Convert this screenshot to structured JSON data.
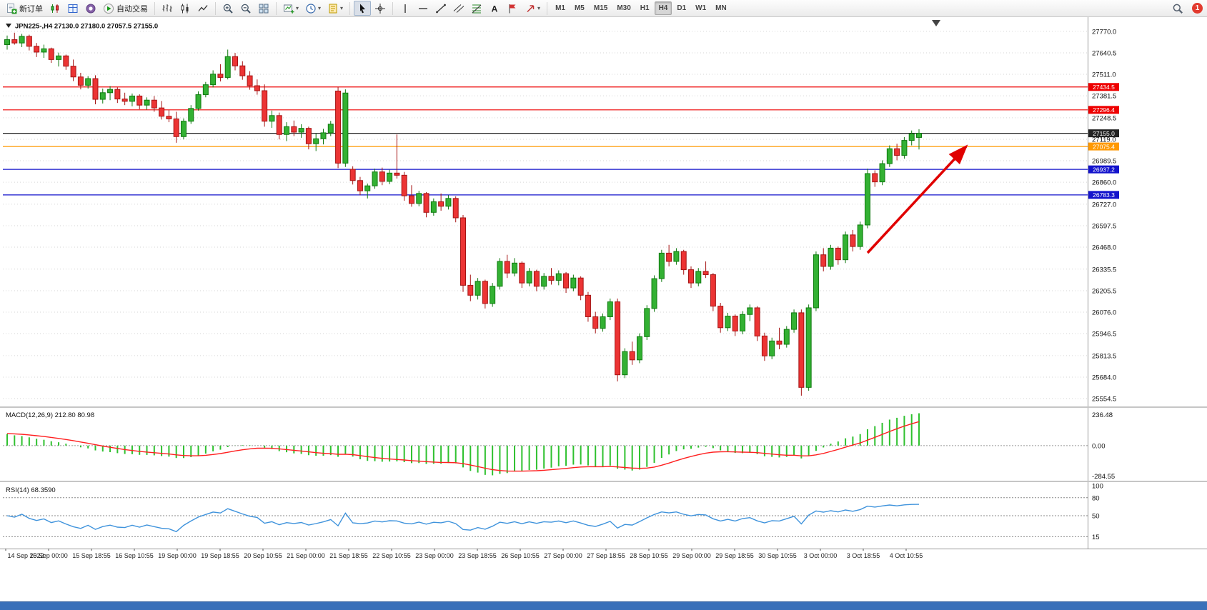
{
  "toolbar": {
    "groups": [
      {
        "items": [
          {
            "name": "new-order-button",
            "icon": "doc-plus",
            "label": "新订单"
          },
          {
            "name": "market-watch-button",
            "icon": "mini-candles"
          },
          {
            "name": "data-window-button",
            "icon": "blue-grid"
          },
          {
            "name": "navigator-button",
            "icon": "purple-circle"
          },
          {
            "name": "autotrading-button",
            "icon": "play",
            "label": "自动交易"
          }
        ]
      },
      {
        "items": [
          {
            "name": "bars-chart-button",
            "icon": "bars"
          },
          {
            "name": "candles-chart-button",
            "icon": "candles"
          },
          {
            "name": "line-chart-button",
            "icon": "line"
          }
        ]
      },
      {
        "items": [
          {
            "name": "zoom-in-button",
            "icon": "zoom-in"
          },
          {
            "name": "zoom-out-button",
            "icon": "zoom-out"
          },
          {
            "name": "tile-windows-button",
            "icon": "tile"
          }
        ]
      },
      {
        "items": [
          {
            "name": "new-chart-button",
            "icon": "new-chart",
            "caret": true
          },
          {
            "name": "periods-button",
            "icon": "clock",
            "caret": true
          },
          {
            "name": "templates-button",
            "icon": "template",
            "caret": true
          }
        ]
      },
      {
        "items": [
          {
            "name": "cursor-button",
            "icon": "cursor",
            "active": true
          },
          {
            "name": "crosshair-button",
            "icon": "crosshair"
          }
        ]
      },
      {
        "items": [
          {
            "name": "vertical-line-button",
            "icon": "vline"
          },
          {
            "name": "horizontal-line-button",
            "icon": "hline"
          },
          {
            "name": "trendline-button",
            "icon": "trendline"
          },
          {
            "name": "channel-button",
            "icon": "channel"
          },
          {
            "name": "fibonacci-button",
            "icon": "fibo"
          },
          {
            "name": "text-button",
            "icon": "text"
          },
          {
            "name": "label-button",
            "icon": "flag"
          },
          {
            "name": "shapes-button",
            "icon": "arrows",
            "caret": true
          }
        ]
      }
    ],
    "timeframes": [
      "M1",
      "M5",
      "M15",
      "M30",
      "H1",
      "H4",
      "D1",
      "W1",
      "MN"
    ],
    "active_timeframe": "H4",
    "notification_count": "1"
  },
  "chart_data": {
    "type": "candlestick",
    "symbol": "JPN225-,H4",
    "ohlc_readout": "27130.0 27180.0 27057.5 27155.0",
    "ylim": [
      25520,
      27830
    ],
    "price_ticks": [
      27770.0,
      27640.5,
      27511.0,
      27381.5,
      27248.5,
      27119.0,
      26989.5,
      26860.0,
      26727.0,
      26597.5,
      26468.0,
      26335.5,
      26205.5,
      26076.0,
      25946.5,
      25813.5,
      25684.0,
      25554.5
    ],
    "hlines": [
      {
        "value": 27434.5,
        "label": "27434.5",
        "color": "#ee0000"
      },
      {
        "value": 27296.4,
        "label": "27296.4",
        "color": "#ee0000"
      },
      {
        "value": 27155.0,
        "label": "27155.0",
        "color": "#222222"
      },
      {
        "value": 27075.4,
        "label": "27075.4",
        "color": "#ff9900"
      },
      {
        "value": 26937.2,
        "label": "26937.2",
        "color": "#1313cc"
      },
      {
        "value": 26783.3,
        "label": "26783.3",
        "color": "#1313cc"
      }
    ],
    "candles": [
      [
        27690,
        27745,
        27660,
        27720
      ],
      [
        27720,
        27762,
        27690,
        27700
      ],
      [
        27700,
        27755,
        27675,
        27740
      ],
      [
        27740,
        27750,
        27655,
        27680
      ],
      [
        27680,
        27700,
        27615,
        27645
      ],
      [
        27645,
        27690,
        27610,
        27665
      ],
      [
        27665,
        27672,
        27580,
        27600
      ],
      [
        27600,
        27642,
        27558,
        27622
      ],
      [
        27622,
        27630,
        27538,
        27560
      ],
      [
        27560,
        27600,
        27470,
        27495
      ],
      [
        27495,
        27520,
        27420,
        27445
      ],
      [
        27445,
        27500,
        27425,
        27485
      ],
      [
        27485,
        27505,
        27330,
        27360
      ],
      [
        27360,
        27425,
        27335,
        27400
      ],
      [
        27400,
        27440,
        27355,
        27420
      ],
      [
        27420,
        27432,
        27338,
        27362
      ],
      [
        27362,
        27400,
        27325,
        27348
      ],
      [
        27348,
        27395,
        27318,
        27380
      ],
      [
        27380,
        27390,
        27300,
        27325
      ],
      [
        27325,
        27372,
        27298,
        27355
      ],
      [
        27355,
        27380,
        27285,
        27308
      ],
      [
        27308,
        27350,
        27238,
        27258
      ],
      [
        27258,
        27295,
        27222,
        27242
      ],
      [
        27242,
        27285,
        27098,
        27135
      ],
      [
        27135,
        27245,
        27118,
        27228
      ],
      [
        27228,
        27325,
        27212,
        27305
      ],
      [
        27305,
        27408,
        27292,
        27388
      ],
      [
        27388,
        27465,
        27372,
        27448
      ],
      [
        27448,
        27535,
        27432,
        27512
      ],
      [
        27512,
        27572,
        27468,
        27492
      ],
      [
        27492,
        27660,
        27480,
        27618
      ],
      [
        27618,
        27640,
        27535,
        27562
      ],
      [
        27562,
        27590,
        27478,
        27502
      ],
      [
        27502,
        27530,
        27418,
        27442
      ],
      [
        27442,
        27480,
        27388,
        27412
      ],
      [
        27412,
        27450,
        27195,
        27228
      ],
      [
        27228,
        27292,
        27188,
        27262
      ],
      [
        27262,
        27280,
        27118,
        27148
      ],
      [
        27148,
        27222,
        27108,
        27195
      ],
      [
        27195,
        27232,
        27138,
        27162
      ],
      [
        27162,
        27210,
        27128,
        27185
      ],
      [
        27185,
        27195,
        27058,
        27092
      ],
      [
        27092,
        27152,
        27048,
        27122
      ],
      [
        27122,
        27182,
        27088,
        27158
      ],
      [
        27158,
        27230,
        27138,
        27210
      ],
      [
        27410,
        27435,
        26945,
        26975
      ],
      [
        26975,
        27420,
        26952,
        27398
      ],
      [
        26938,
        26956,
        26846,
        26870
      ],
      [
        26870,
        26892,
        26782,
        26808
      ],
      [
        26808,
        26852,
        26762,
        26838
      ],
      [
        26838,
        26942,
        26820,
        26922
      ],
      [
        26922,
        26948,
        26842,
        26865
      ],
      [
        26865,
        26935,
        26848,
        26915
      ],
      [
        26915,
        27148,
        26882,
        26902
      ],
      [
        26902,
        26922,
        26748,
        26778
      ],
      [
        26778,
        26842,
        26712,
        26732
      ],
      [
        26732,
        26808,
        26715,
        26792
      ],
      [
        26792,
        26800,
        26648,
        26678
      ],
      [
        26678,
        26762,
        26658,
        26742
      ],
      [
        26742,
        26792,
        26688,
        26715
      ],
      [
        26715,
        26782,
        26695,
        26762
      ],
      [
        26762,
        26775,
        26618,
        26645
      ],
      [
        26645,
        26662,
        26198,
        26238
      ],
      [
        26238,
        26302,
        26142,
        26178
      ],
      [
        26178,
        26282,
        26152,
        26262
      ],
      [
        26262,
        26272,
        26098,
        26128
      ],
      [
        26128,
        26252,
        26108,
        26232
      ],
      [
        26232,
        26402,
        26212,
        26382
      ],
      [
        26382,
        26422,
        26282,
        26312
      ],
      [
        26312,
        26402,
        26292,
        26372
      ],
      [
        26372,
        26382,
        26222,
        26252
      ],
      [
        26252,
        26342,
        26232,
        26322
      ],
      [
        26322,
        26332,
        26202,
        26232
      ],
      [
        26232,
        26312,
        26212,
        26292
      ],
      [
        26292,
        26342,
        26242,
        26268
      ],
      [
        26268,
        26328,
        26238,
        26308
      ],
      [
        26308,
        26318,
        26192,
        26222
      ],
      [
        26222,
        26302,
        26202,
        26282
      ],
      [
        26282,
        26292,
        26148,
        26178
      ],
      [
        26178,
        26198,
        26018,
        26048
      ],
      [
        26048,
        26078,
        25948,
        25978
      ],
      [
        25978,
        26068,
        25958,
        26048
      ],
      [
        26048,
        26158,
        26028,
        26138
      ],
      [
        26138,
        26158,
        25658,
        25698
      ],
      [
        25698,
        25858,
        25678,
        25838
      ],
      [
        25838,
        25898,
        25758,
        25788
      ],
      [
        25788,
        25948,
        25768,
        25928
      ],
      [
        25928,
        26118,
        25908,
        26098
      ],
      [
        26098,
        26298,
        26078,
        26278
      ],
      [
        26278,
        26452,
        26258,
        26432
      ],
      [
        26432,
        26482,
        26352,
        26382
      ],
      [
        26382,
        26462,
        26362,
        26442
      ],
      [
        26442,
        26452,
        26302,
        26332
      ],
      [
        26332,
        26352,
        26222,
        26252
      ],
      [
        26252,
        26342,
        26232,
        26322
      ],
      [
        26322,
        26382,
        26282,
        26302
      ],
      [
        26302,
        26312,
        26082,
        26112
      ],
      [
        26112,
        26132,
        25952,
        25982
      ],
      [
        25982,
        26072,
        25962,
        26052
      ],
      [
        26052,
        26062,
        25932,
        25962
      ],
      [
        25962,
        26082,
        25942,
        26062
      ],
      [
        26062,
        26122,
        26022,
        26102
      ],
      [
        26102,
        26112,
        25902,
        25932
      ],
      [
        25932,
        25952,
        25782,
        25812
      ],
      [
        25812,
        25922,
        25792,
        25902
      ],
      [
        25902,
        25982,
        25852,
        25882
      ],
      [
        25882,
        25992,
        25862,
        25972
      ],
      [
        25972,
        26092,
        25952,
        26072
      ],
      [
        26072,
        26092,
        25572,
        25622
      ],
      [
        25622,
        26122,
        25602,
        26102
      ],
      [
        26102,
        26442,
        26082,
        26422
      ],
      [
        26422,
        26462,
        26322,
        26352
      ],
      [
        26352,
        26482,
        26332,
        26462
      ],
      [
        26462,
        26472,
        26362,
        26392
      ],
      [
        26392,
        26562,
        26372,
        26542
      ],
      [
        26542,
        26572,
        26442,
        26472
      ],
      [
        26472,
        26622,
        26452,
        26602
      ],
      [
        26602,
        26942,
        26582,
        26912
      ],
      [
        26912,
        26932,
        26832,
        26862
      ],
      [
        26862,
        26992,
        26842,
        26972
      ],
      [
        26972,
        27082,
        26952,
        27062
      ],
      [
        27062,
        27092,
        26992,
        27022
      ],
      [
        27022,
        27132,
        27002,
        27112
      ],
      [
        27112,
        27172,
        27082,
        27152
      ],
      [
        27130,
        27180,
        27057.5,
        27155
      ]
    ],
    "time_labels": [
      "14 Sep 2022",
      "15 Sep 00:00",
      "15 Sep 18:55",
      "16 Sep 10:55",
      "19 Sep 00:00",
      "19 Sep 18:55",
      "20 Sep 10:55",
      "21 Sep 00:00",
      "21 Sep 18:55",
      "22 Sep 10:55",
      "23 Sep 00:00",
      "23 Sep 18:55",
      "26 Sep 10:55",
      "27 Sep 00:00",
      "27 Sep 18:55",
      "28 Sep 10:55",
      "29 Sep 00:00",
      "29 Sep 18:55",
      "30 Sep 10:55",
      "3 Oct 00:00",
      "3 Oct 18:55",
      "4 Oct 10:55"
    ],
    "indicators": [
      {
        "name": "MACD",
        "label": "MACD(12,26,9)",
        "params": [
          12,
          26,
          9
        ],
        "readout": "212.80 80.98",
        "axis_ticks": [
          "236.48",
          "0.00",
          "-284.55"
        ]
      },
      {
        "name": "RSI",
        "label": "RSI(14)",
        "params": [
          14
        ],
        "readout": "68.3590",
        "axis_ticks": [
          "100",
          "80",
          "50",
          "15"
        ],
        "levels": [
          80,
          50,
          15
        ]
      }
    ],
    "annotation_arrow": {
      "type": "arrow",
      "direction": "up-right",
      "color": "#e00000"
    },
    "colors": {
      "up": "#33b133",
      "up_border": "#0f7a0f",
      "down": "#ec3434",
      "down_border": "#a51414",
      "macd": "#2fc12f",
      "signal": "#ff2020",
      "rsi": "#3f93dc",
      "grid": "#d6d6d6",
      "axis_text": "#111111"
    }
  }
}
